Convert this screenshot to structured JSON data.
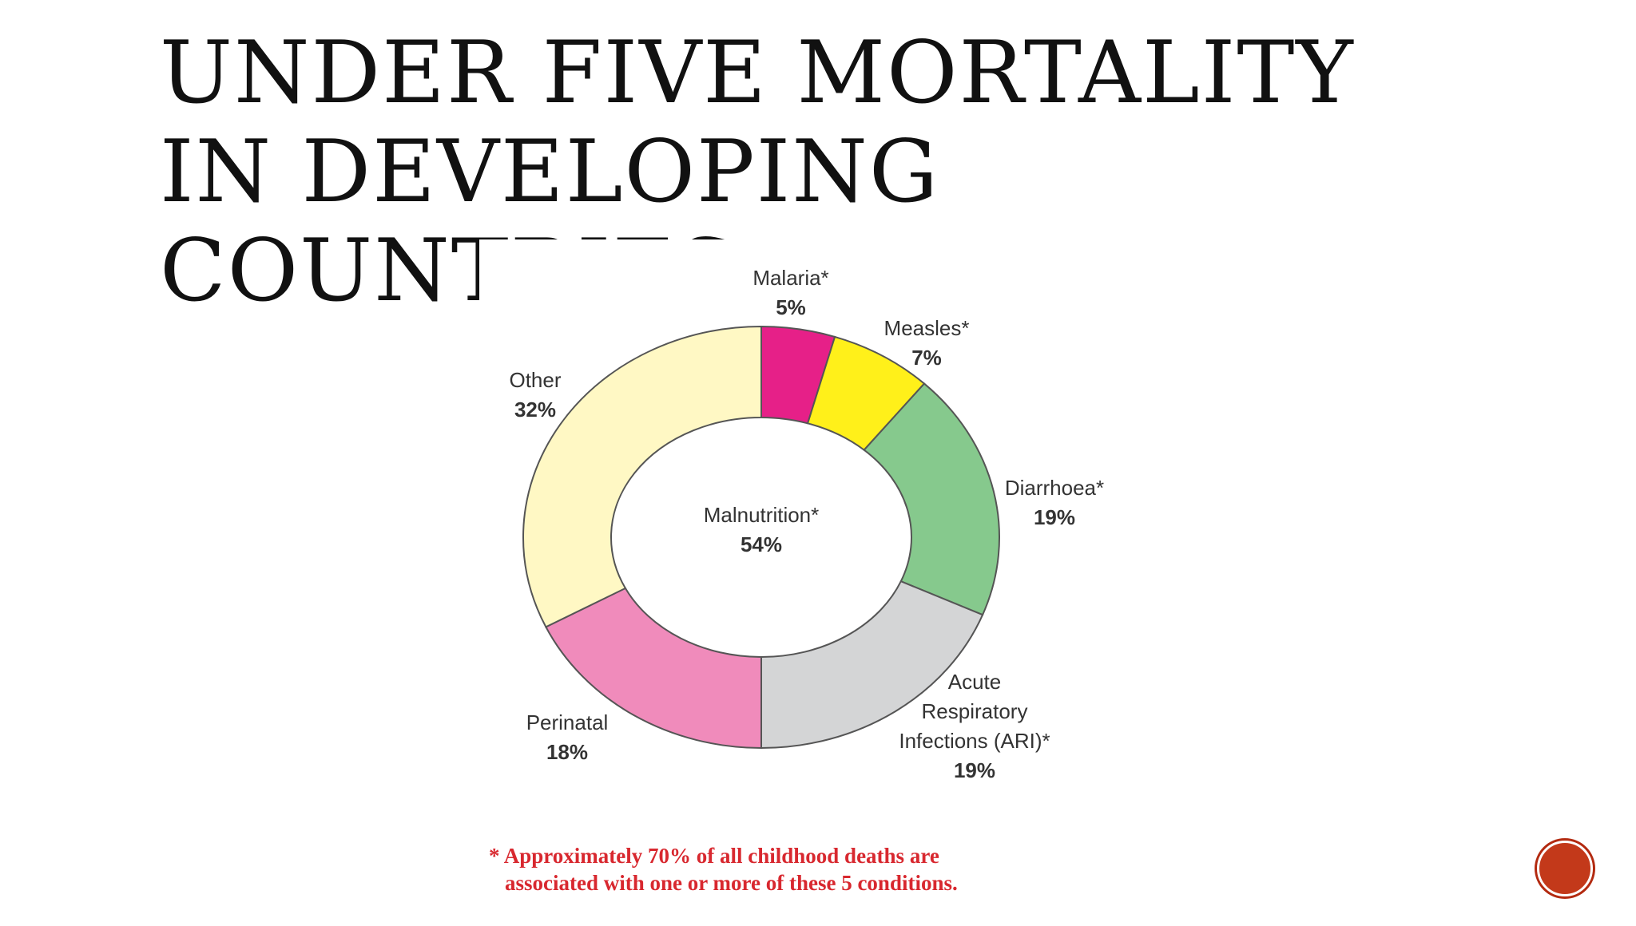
{
  "slide": {
    "title_lines": [
      "UNDER FIVE MORTALITY",
      "IN DEVELOPING",
      "COUNTRIES"
    ]
  },
  "chart_data": {
    "type": "pie",
    "style": "donut",
    "center_label": {
      "name": "Malnutrition*",
      "value": "54%"
    },
    "slices": [
      {
        "name": "Malaria*",
        "value": 5,
        "label": "5%",
        "color": "#e62088"
      },
      {
        "name": "Measles*",
        "value": 7,
        "label": "7%",
        "color": "#fff01a"
      },
      {
        "name": "Diarrhoea*",
        "value": 19,
        "label": "19%",
        "color": "#86c98d"
      },
      {
        "name": "Acute Respiratory Infections (ARI)*",
        "name_lines": [
          "Acute",
          "Respiratory",
          "Infections (ARI)*"
        ],
        "value": 19,
        "label": "19%",
        "color": "#d4d5d6"
      },
      {
        "name": "Perinatal",
        "value": 18,
        "label": "18%",
        "color": "#f08bbb"
      },
      {
        "name": "Other",
        "value": 32,
        "label": "32%",
        "color": "#fff8c4"
      }
    ],
    "footnote": [
      "* Approximately 70% of all childhood deaths are",
      "associated with one or more of these 5 conditions."
    ]
  },
  "colors": {
    "title": "#111111",
    "footnote": "#d8282f",
    "nav_button": "#c3391a"
  },
  "icons": {
    "nav_button": "circle-nav-button"
  }
}
